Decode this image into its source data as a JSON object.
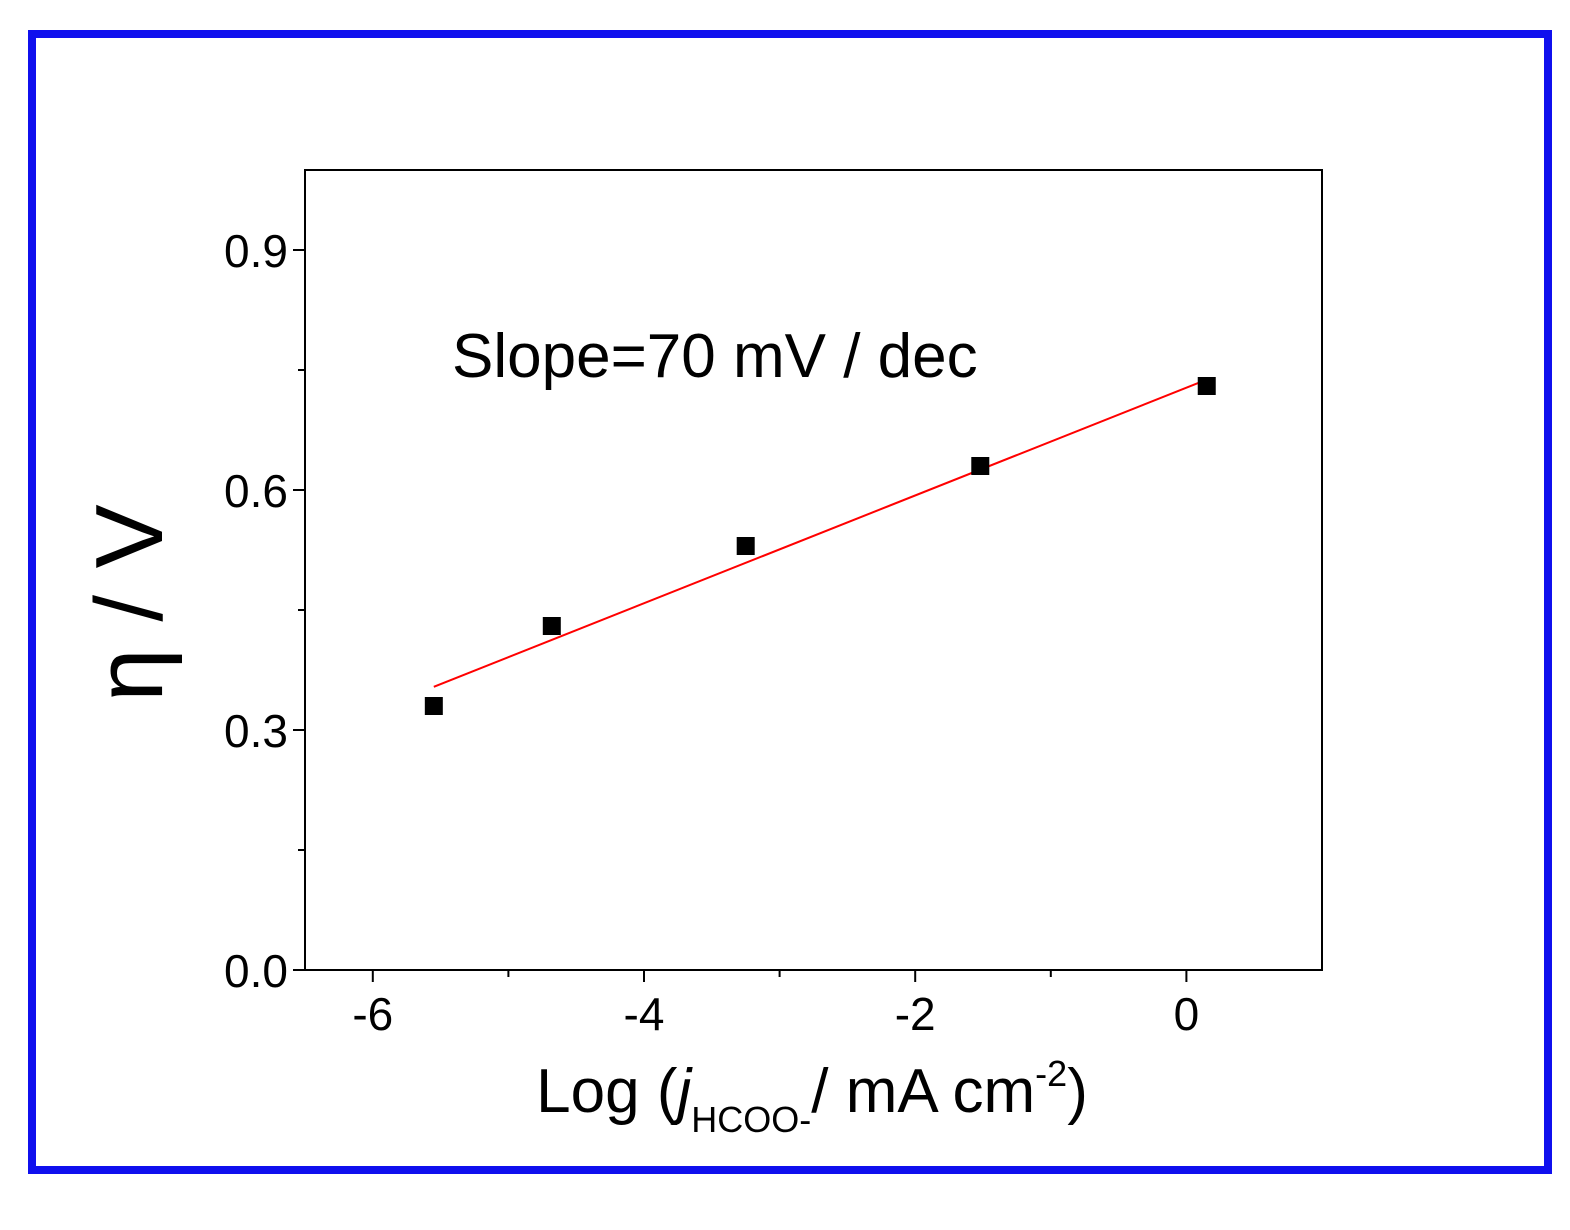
{
  "chart_data": {
    "type": "scatter",
    "title": "",
    "xlabel": {
      "main": "Log (",
      "italic": "j",
      "subscript": "HCOO-",
      "middle": "/ mA cm",
      "superscript": "-2",
      "end": ")"
    },
    "ylabel": "η / V",
    "xlim": [
      -6.5,
      1.0
    ],
    "ylim": [
      0.0,
      1.0
    ],
    "x_ticks": [
      {
        "value": -6,
        "label": "-6"
      },
      {
        "value": -4,
        "label": "-4"
      },
      {
        "value": -2,
        "label": "-2"
      },
      {
        "value": 0,
        "label": "0"
      }
    ],
    "x_minor_ticks": [
      -5,
      -3,
      -1
    ],
    "y_ticks": [
      {
        "value": 0.0,
        "label": "0.0"
      },
      {
        "value": 0.3,
        "label": "0.3"
      },
      {
        "value": 0.6,
        "label": "0.6"
      },
      {
        "value": 0.9,
        "label": "0.9"
      }
    ],
    "y_minor_ticks": [
      0.15,
      0.45,
      0.75
    ],
    "grid": false,
    "series": [
      {
        "marker": "square",
        "color": "#000000",
        "points": [
          {
            "x": -5.55,
            "y": 0.33
          },
          {
            "x": -4.68,
            "y": 0.43
          },
          {
            "x": -3.25,
            "y": 0.53
          },
          {
            "x": -1.52,
            "y": 0.63
          },
          {
            "x": 0.15,
            "y": 0.73
          }
        ]
      }
    ],
    "fit_line": {
      "color": "#ff0000",
      "start": {
        "x": -5.55,
        "y": 0.354
      },
      "end": {
        "x": 0.15,
        "y": 0.738
      }
    },
    "annotation": "Slope=70 mV / dec"
  },
  "colors": {
    "frame_border": "#1010ee",
    "fit_line": "#ff0000",
    "markers": "#000000"
  }
}
